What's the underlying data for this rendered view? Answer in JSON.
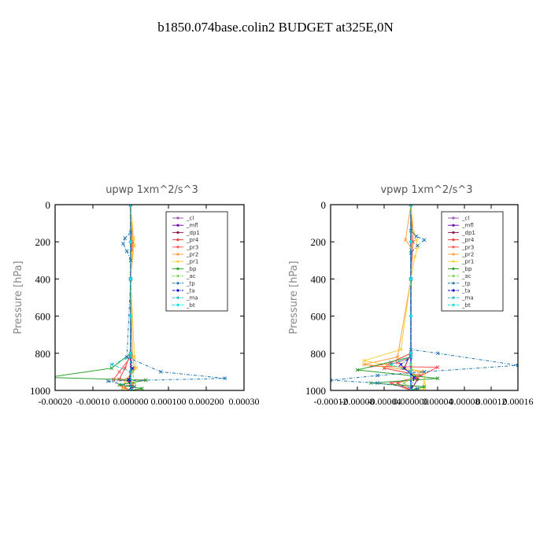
{
  "title": "b1850.074base.colin2  BUDGET at325E,0N",
  "chart_data": [
    {
      "type": "line",
      "title": "upwp   1xm^2/s^3",
      "ylabel": "Pressure [hPa]",
      "ylim": [
        1000,
        0
      ],
      "yticks": [
        "0",
        "200",
        "400",
        "600",
        "800",
        "1000"
      ],
      "xlim": [
        -0.0002,
        0.0003
      ],
      "xtick_values": [
        -0.0002,
        -0.0001,
        0.0,
        0.0001,
        0.0002,
        0.0003
      ],
      "xticks": [
        "-0.00020",
        "-0.00010",
        "0.000000",
        "0.000100",
        "0.000200",
        "0.00030"
      ],
      "legend_position": "top-right",
      "series": [
        {
          "name": "_cl",
          "color": "#9b59b6",
          "marker": "diamond",
          "points": [
            [
              0,
              0
            ],
            [
              0,
              200
            ],
            [
              0,
              400
            ],
            [
              0,
              600
            ],
            [
              0,
              800
            ],
            [
              0,
              1000
            ]
          ]
        },
        {
          "name": "_mfl",
          "color": "#6a0dad",
          "marker": "diamond",
          "points": [
            [
              0,
              0
            ],
            [
              0,
              200
            ],
            [
              0,
              400
            ],
            [
              0,
              600
            ],
            [
              0,
              800
            ],
            [
              0,
              1000
            ]
          ]
        },
        {
          "name": "_dp1",
          "color": "#8b1a4a",
          "marker": "diamond",
          "points": [
            [
              0,
              0
            ],
            [
              0,
              200
            ],
            [
              0,
              400
            ],
            [
              0,
              800
            ],
            [
              0,
              900
            ],
            [
              -5e-06,
              950
            ],
            [
              5e-06,
              980
            ],
            [
              0,
              1000
            ]
          ]
        },
        {
          "name": "_pr4",
          "color": "#e8403c",
          "marker": "x",
          "points": [
            [
              0,
              0
            ],
            [
              5e-06,
              200
            ],
            [
              0,
              400
            ],
            [
              0,
              800
            ],
            [
              -1.5e-05,
              880
            ],
            [
              -3e-05,
              940
            ],
            [
              1e-05,
              960
            ],
            [
              -2e-05,
              985
            ],
            [
              0,
              1000
            ]
          ]
        },
        {
          "name": "_pr3",
          "color": "#ff5555",
          "marker": "x",
          "points": [
            [
              0,
              0
            ],
            [
              3e-06,
              200
            ],
            [
              0,
              400
            ],
            [
              0,
              820
            ],
            [
              -3e-05,
              900
            ],
            [
              -4.5e-05,
              940
            ],
            [
              4e-05,
              945
            ],
            [
              -3e-05,
              970
            ],
            [
              0,
              1000
            ]
          ]
        },
        {
          "name": "_pr2",
          "color": "#ff9f40",
          "marker": "x",
          "points": [
            [
              0,
              0
            ],
            [
              5e-06,
              180
            ],
            [
              8e-06,
              220
            ],
            [
              0,
              400
            ],
            [
              5e-06,
              820
            ],
            [
              1e-05,
              880
            ],
            [
              -1e-05,
              940
            ],
            [
              1e-05,
              980
            ],
            [
              0,
              1000
            ]
          ]
        },
        {
          "name": "_pr1",
          "color": "#f4d03f",
          "marker": "x",
          "points": [
            [
              0,
              0
            ],
            [
              8e-06,
              180
            ],
            [
              1e-05,
              220
            ],
            [
              4e-06,
              260
            ],
            [
              0,
              400
            ],
            [
              1e-05,
              820
            ],
            [
              1.5e-05,
              880
            ],
            [
              -1.5e-05,
              960
            ],
            [
              -2e-05,
              990
            ],
            [
              0,
              1000
            ]
          ]
        },
        {
          "name": "_bp",
          "color": "#2ca02c",
          "marker": "x",
          "points": [
            [
              0,
              0
            ],
            [
              0,
              400
            ],
            [
              0,
              800
            ],
            [
              -5e-05,
              880
            ],
            [
              -0.00022,
              930
            ],
            [
              4e-05,
              945
            ],
            [
              -3e-05,
              970
            ],
            [
              3e-05,
              990
            ],
            [
              0,
              1000
            ]
          ]
        },
        {
          "name": "_ac",
          "color": "#7ed957",
          "marker": "x",
          "points": [
            [
              0,
              0
            ],
            [
              0,
              400
            ],
            [
              0,
              820
            ],
            [
              5e-06,
              900
            ],
            [
              1e-05,
              960
            ],
            [
              0,
              1000
            ]
          ]
        },
        {
          "name": "_tp",
          "color": "#1f77b4",
          "marker": "x",
          "points": [
            [
              0,
              0
            ],
            [
              0,
              150
            ],
            [
              -1.5e-05,
              180
            ],
            [
              -2e-05,
              210
            ],
            [
              -1e-05,
              250
            ],
            [
              0,
              300
            ],
            [
              0,
              400
            ],
            [
              -1e-05,
              820
            ],
            [
              8e-05,
              900
            ],
            [
              0.00025,
              935
            ],
            [
              -6e-05,
              950
            ],
            [
              1e-05,
              980
            ],
            [
              0,
              1000
            ]
          ]
        },
        {
          "name": "_ta",
          "color": "#0000cc",
          "marker": "x",
          "points": [
            [
              0,
              0
            ],
            [
              0,
              400
            ],
            [
              0,
              820
            ],
            [
              5e-06,
              880
            ],
            [
              -5e-06,
              940
            ],
            [
              0,
              1000
            ]
          ]
        },
        {
          "name": "_ma",
          "color": "#17becf",
          "marker": "x",
          "points": [
            [
              0,
              0
            ],
            [
              0,
              400
            ],
            [
              0,
              820
            ],
            [
              -5e-05,
              860
            ],
            [
              0,
              900
            ],
            [
              0,
              1000
            ]
          ]
        },
        {
          "name": "_bt",
          "color": "#00e5ee",
          "marker": "diamond",
          "points": [
            [
              0,
              0
            ],
            [
              0,
              200
            ],
            [
              0,
              400
            ],
            [
              0,
              600
            ],
            [
              0,
              800
            ],
            [
              0,
              1000
            ]
          ]
        }
      ]
    },
    {
      "type": "line",
      "title": "vpwp   1xm^2/s^3",
      "ylabel": "Pressure [hPa]",
      "ylim": [
        1000,
        0
      ],
      "yticks": [
        "0",
        "200",
        "400",
        "600",
        "800",
        "1000"
      ],
      "xlim": [
        -0.00012,
        0.00016
      ],
      "xtick_values": [
        -0.00012,
        -8e-05,
        -4e-05,
        0.0,
        4e-05,
        8e-05,
        0.00012,
        0.00016
      ],
      "xticks": [
        "-0.00012",
        "-0.00008",
        "-0.00004",
        "0.000000",
        "0.00004",
        "0.00008",
        "0.00012",
        "0.00016"
      ],
      "legend_position": "top-right",
      "series": [
        {
          "name": "_cl",
          "color": "#9b59b6",
          "marker": "diamond",
          "points": [
            [
              0,
              0
            ],
            [
              0,
              200
            ],
            [
              0,
              400
            ],
            [
              0,
              600
            ],
            [
              0,
              800
            ],
            [
              0,
              1000
            ]
          ]
        },
        {
          "name": "_mfl",
          "color": "#6a0dad",
          "marker": "diamond",
          "points": [
            [
              0,
              0
            ],
            [
              0,
              200
            ],
            [
              0,
              400
            ],
            [
              0,
              600
            ],
            [
              0,
              800
            ],
            [
              0,
              1000
            ]
          ]
        },
        {
          "name": "_dp1",
          "color": "#8b1a4a",
          "marker": "diamond",
          "points": [
            [
              0,
              0
            ],
            [
              0,
              200
            ],
            [
              0,
              400
            ],
            [
              0,
              800
            ],
            [
              -1e-05,
              880
            ],
            [
              1e-05,
              940
            ],
            [
              0,
              1000
            ]
          ]
        },
        {
          "name": "_pr4",
          "color": "#e8403c",
          "marker": "x",
          "points": [
            [
              0,
              0
            ],
            [
              3e-06,
              200
            ],
            [
              0,
              400
            ],
            [
              0,
              800
            ],
            [
              -3e-05,
              850
            ],
            [
              -4e-05,
              880
            ],
            [
              1.5e-05,
              920
            ],
            [
              -2e-05,
              960
            ],
            [
              0,
              1000
            ]
          ]
        },
        {
          "name": "_pr3",
          "color": "#ff5555",
          "marker": "x",
          "points": [
            [
              0,
              0
            ],
            [
              0,
              400
            ],
            [
              0,
              820
            ],
            [
              -2e-05,
              850
            ],
            [
              -6e-05,
              870
            ],
            [
              4e-05,
              875
            ],
            [
              1e-05,
              930
            ],
            [
              -3e-05,
              960
            ],
            [
              0,
              1000
            ]
          ]
        },
        {
          "name": "_pr2",
          "color": "#ff9f40",
          "marker": "x",
          "points": [
            [
              0,
              0
            ],
            [
              -8e-06,
              190
            ],
            [
              0,
              230
            ],
            [
              0,
              400
            ],
            [
              -2e-05,
              820
            ],
            [
              -7e-05,
              860
            ],
            [
              1.5e-05,
              900
            ],
            [
              -1e-05,
              960
            ],
            [
              0,
              1000
            ]
          ]
        },
        {
          "name": "_pr1",
          "color": "#f4d03f",
          "marker": "x",
          "points": [
            [
              0,
              0
            ],
            [
              4e-06,
              150
            ],
            [
              8e-06,
              190
            ],
            [
              1e-05,
              230
            ],
            [
              6e-06,
              280
            ],
            [
              0,
              400
            ],
            [
              -1.5e-05,
              780
            ],
            [
              -7e-05,
              840
            ],
            [
              2e-05,
              900
            ],
            [
              2e-05,
              960
            ],
            [
              2e-05,
              990
            ],
            [
              0,
              1000
            ]
          ]
        },
        {
          "name": "_bp",
          "color": "#2ca02c",
          "marker": "x",
          "points": [
            [
              0,
              0
            ],
            [
              0,
              400
            ],
            [
              0,
              820
            ],
            [
              -8e-05,
              890
            ],
            [
              4e-05,
              935
            ],
            [
              -6e-05,
              960
            ],
            [
              2e-05,
              980
            ],
            [
              0,
              1000
            ]
          ]
        },
        {
          "name": "_ac",
          "color": "#7ed957",
          "marker": "x",
          "points": [
            [
              0,
              0
            ],
            [
              0,
              400
            ],
            [
              0,
              860
            ],
            [
              5e-06,
              920
            ],
            [
              -1e-05,
              960
            ],
            [
              0,
              1000
            ]
          ]
        },
        {
          "name": "_tp",
          "color": "#1f77b4",
          "marker": "x",
          "points": [
            [
              0,
              0
            ],
            [
              0,
              140
            ],
            [
              8e-06,
              170
            ],
            [
              2e-05,
              190
            ],
            [
              1e-05,
              220
            ],
            [
              0,
              260
            ],
            [
              0,
              400
            ],
            [
              0,
              780
            ],
            [
              4e-05,
              800
            ],
            [
              0.00016,
              865
            ],
            [
              2e-05,
              900
            ],
            [
              -5e-05,
              920
            ],
            [
              -0.00012,
              945
            ],
            [
              -5e-05,
              960
            ],
            [
              1e-05,
              990
            ],
            [
              0,
              1000
            ]
          ]
        },
        {
          "name": "_ta",
          "color": "#0000cc",
          "marker": "x",
          "points": [
            [
              0,
              0
            ],
            [
              0,
              400
            ],
            [
              0,
              820
            ],
            [
              -1.5e-05,
              860
            ],
            [
              -1e-05,
              880
            ],
            [
              5e-06,
              930
            ],
            [
              0,
              1000
            ]
          ]
        },
        {
          "name": "_ma",
          "color": "#17becf",
          "marker": "x",
          "points": [
            [
              0,
              0
            ],
            [
              0,
              400
            ],
            [
              0,
              820
            ],
            [
              -3e-05,
              860
            ],
            [
              0,
              900
            ],
            [
              0,
              1000
            ]
          ]
        },
        {
          "name": "_bt",
          "color": "#00e5ee",
          "marker": "diamond",
          "points": [
            [
              0,
              0
            ],
            [
              0,
              200
            ],
            [
              0,
              400
            ],
            [
              0,
              600
            ],
            [
              0,
              800
            ],
            [
              0,
              1000
            ]
          ]
        }
      ]
    }
  ]
}
